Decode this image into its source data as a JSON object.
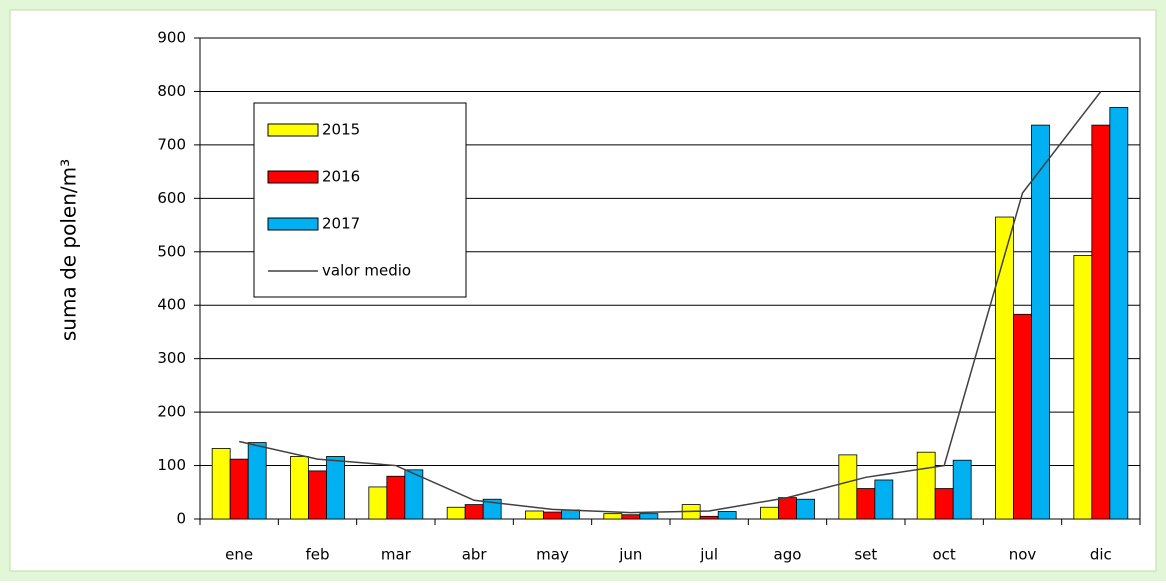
{
  "chart_data": {
    "type": "bar",
    "y_label": "suma de polen/m³",
    "categories": [
      "ene",
      "feb",
      "mar",
      "abr",
      "may",
      "jun",
      "jul",
      "ago",
      "set",
      "oct",
      "nov",
      "dic"
    ],
    "series": [
      {
        "name": "2015",
        "color": "#ffff00",
        "values": [
          132,
          117,
          60,
          22,
          15,
          10,
          27,
          22,
          120,
          125,
          565,
          493
        ]
      },
      {
        "name": "2016",
        "color": "#ff0000",
        "values": [
          112,
          90,
          80,
          27,
          13,
          8,
          5,
          40,
          57,
          57,
          383,
          737
        ]
      },
      {
        "name": "2017",
        "color": "#00b0f0",
        "values": [
          143,
          117,
          92,
          37,
          17,
          10,
          14,
          37,
          73,
          110,
          737,
          770
        ]
      },
      {
        "name": "valor medio",
        "type": "line",
        "color": "#404040",
        "values": [
          145,
          112,
          100,
          35,
          18,
          12,
          15,
          40,
          78,
          100,
          610,
          800
        ]
      }
    ],
    "ylim": [
      0,
      900
    ],
    "yticks": [
      0,
      100,
      200,
      300,
      400,
      500,
      600,
      700,
      800,
      900
    ],
    "grid": true,
    "legend": "upper left"
  }
}
